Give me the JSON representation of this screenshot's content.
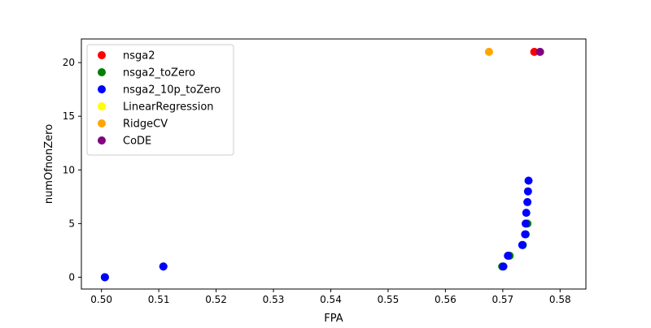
{
  "chart_data": {
    "type": "scatter",
    "title": "",
    "xlabel": "FPA",
    "ylabel": "numOfnonZero",
    "xlim": [
      0.4965,
      0.5845
    ],
    "ylim": [
      -1.1,
      22.2
    ],
    "xticks": [
      0.5,
      0.51,
      0.52,
      0.53,
      0.54,
      0.55,
      0.56,
      0.57,
      0.58
    ],
    "xtick_labels": [
      "0.50",
      "0.51",
      "0.52",
      "0.53",
      "0.54",
      "0.55",
      "0.56",
      "0.57",
      "0.58"
    ],
    "yticks": [
      0,
      5,
      10,
      15,
      20
    ],
    "ytick_labels": [
      "0",
      "5",
      "10",
      "15",
      "20"
    ],
    "grid": false,
    "legend_position": "top-left",
    "series": [
      {
        "name": "nsga2",
        "color": "#ff0000",
        "points": [
          [
            0.5755,
            21
          ]
        ]
      },
      {
        "name": "nsga2_toZero",
        "color": "#008000",
        "points": [
          [
            0.5006,
            0
          ],
          [
            0.5108,
            1
          ],
          [
            0.5699,
            1
          ],
          [
            0.5712,
            2
          ],
          [
            0.5735,
            3
          ],
          [
            0.574,
            4
          ],
          [
            0.5743,
            5
          ]
        ]
      },
      {
        "name": "nsga2_10p_toZero",
        "color": "#0000ff",
        "points": [
          [
            0.5006,
            0
          ],
          [
            0.5108,
            1
          ],
          [
            0.5701,
            1
          ],
          [
            0.5709,
            2
          ],
          [
            0.5734,
            3
          ],
          [
            0.5739,
            4
          ],
          [
            0.574,
            5
          ],
          [
            0.5741,
            6
          ],
          [
            0.5743,
            7
          ],
          [
            0.5744,
            8
          ],
          [
            0.5745,
            9
          ]
        ]
      },
      {
        "name": "LinearRegression",
        "color": "#ffff00",
        "points": []
      },
      {
        "name": "RidgeCV",
        "color": "#ffa500",
        "points": [
          [
            0.5676,
            21
          ]
        ]
      },
      {
        "name": "CoDE",
        "color": "#800080",
        "points": [
          [
            0.5765,
            21
          ]
        ]
      }
    ]
  }
}
